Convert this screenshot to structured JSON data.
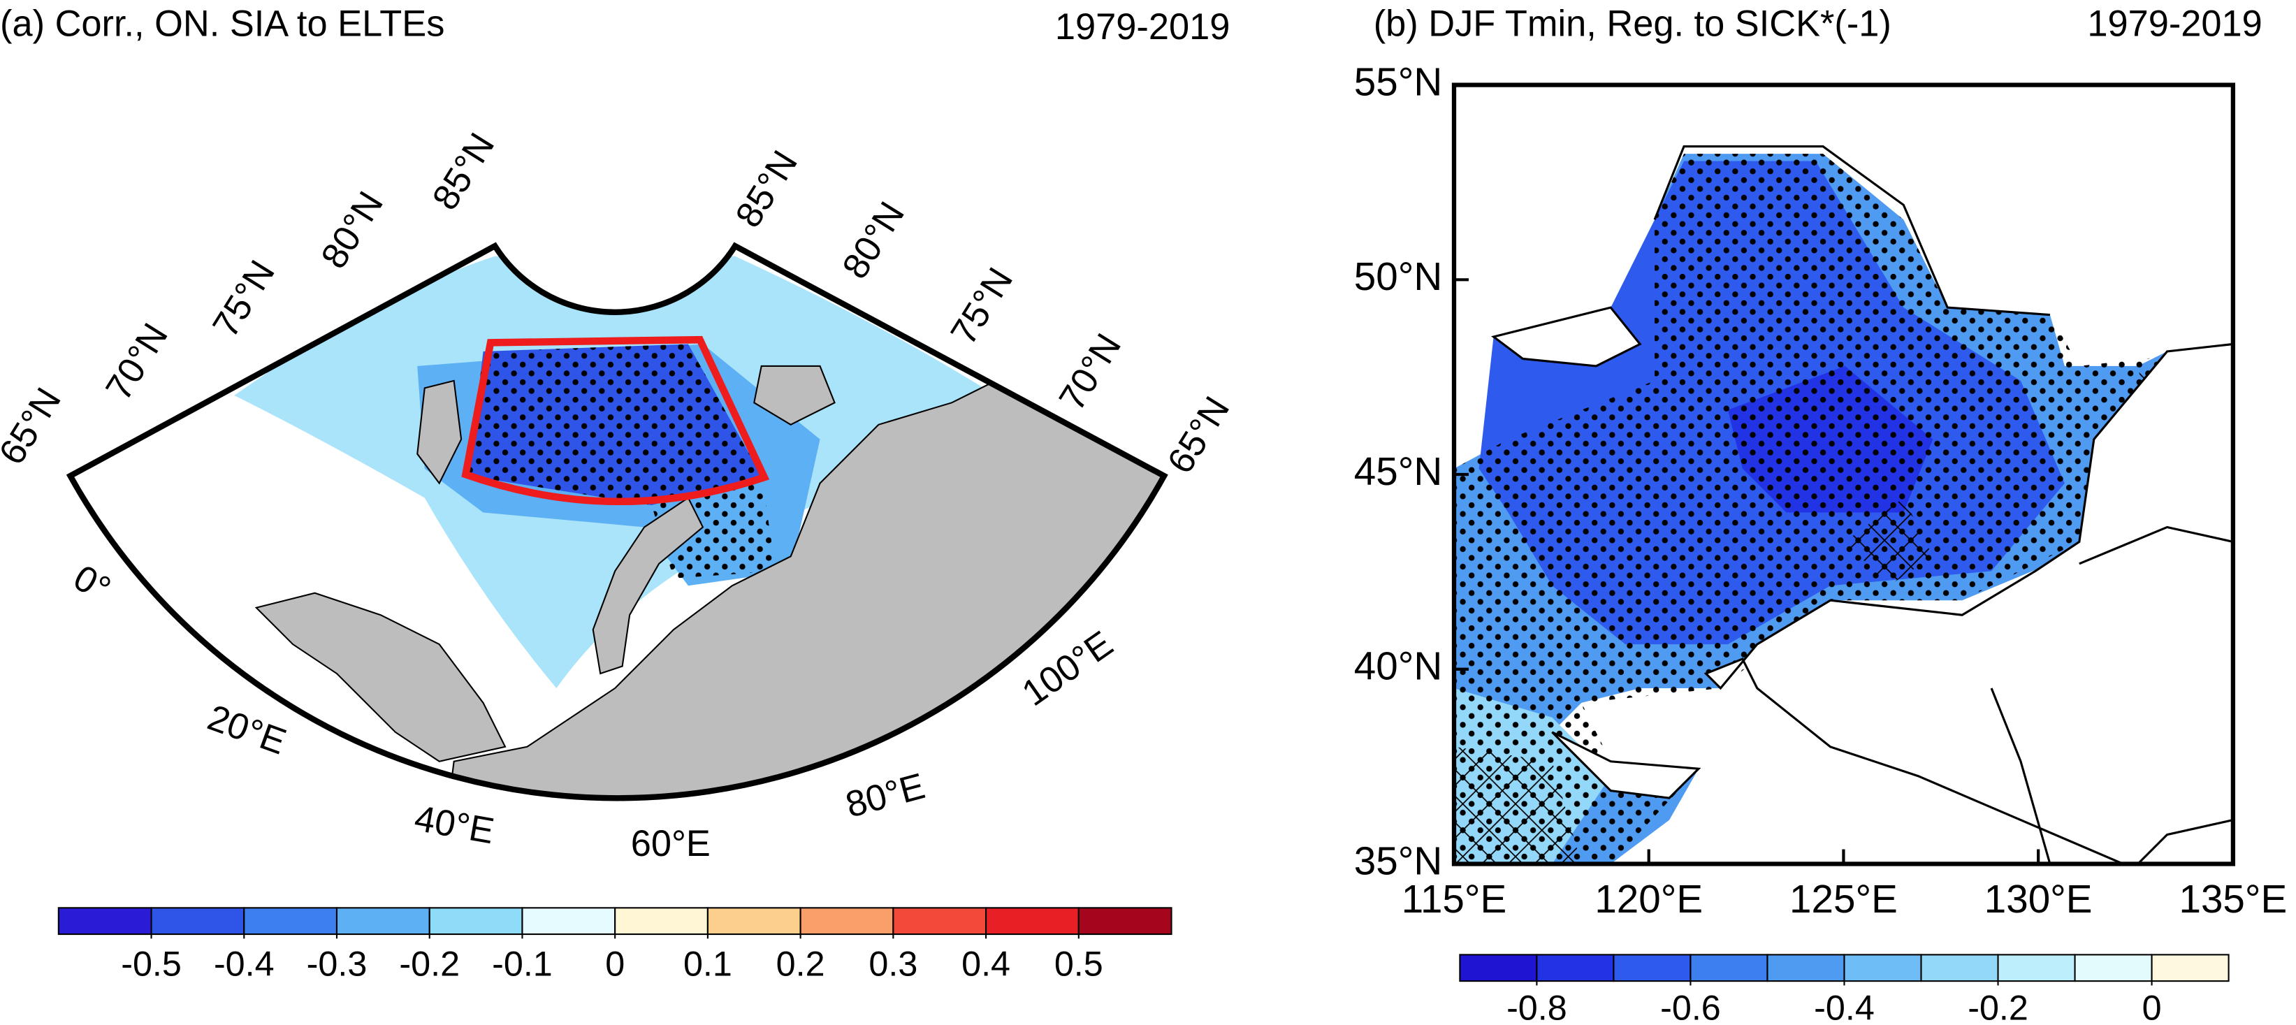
{
  "panel_a": {
    "title": "(a) Corr., ON. SIA to ELTEs",
    "period": "1979-2019",
    "lat_labels_left": [
      "65°N",
      "70°N",
      "75°N",
      "80°N",
      "85°N"
    ],
    "lat_labels_right": [
      "85°N",
      "80°N",
      "75°N",
      "70°N",
      "65°N"
    ],
    "lon_labels": [
      "0°",
      "20°E",
      "40°E",
      "60°E",
      "80°E",
      "100°E"
    ],
    "colorbar": {
      "levels": [
        -0.6,
        -0.5,
        -0.4,
        -0.3,
        -0.2,
        -0.1,
        0,
        0.1,
        0.2,
        0.3,
        0.4,
        0.5,
        0.6
      ],
      "colors": [
        "#2a1bd6",
        "#2f55e8",
        "#3d7fee",
        "#5eb0f5",
        "#8fdcf9",
        "#e6fbff",
        "#fff6d6",
        "#fccf8c",
        "#f9a06a",
        "#f24a3a",
        "#e81f25",
        "#a6061d"
      ],
      "ticks": [
        -0.5,
        -0.4,
        -0.3,
        -0.2,
        -0.1,
        0,
        0.1,
        0.2,
        0.3,
        0.4,
        0.5
      ]
    }
  },
  "panel_b": {
    "title": "(b) DJF Tmin, Reg. to SICK*(-1)",
    "period": "1979-2019",
    "xlim": [
      115,
      135
    ],
    "ylim": [
      35,
      55
    ],
    "xticks": [
      {
        "value": 115,
        "label": "115°E"
      },
      {
        "value": 120,
        "label": "120°E"
      },
      {
        "value": 125,
        "label": "125°E"
      },
      {
        "value": 130,
        "label": "130°E"
      },
      {
        "value": 135,
        "label": "135°E"
      }
    ],
    "yticks": [
      {
        "value": 35,
        "label": "35°N"
      },
      {
        "value": 40,
        "label": "40°N"
      },
      {
        "value": 45,
        "label": "45°N"
      },
      {
        "value": 50,
        "label": "50°N"
      },
      {
        "value": 55,
        "label": "55°N"
      }
    ],
    "colorbar": {
      "levels": [
        -0.9,
        -0.8,
        -0.7,
        -0.6,
        -0.5,
        -0.4,
        -0.3,
        -0.2,
        -0.1,
        0,
        0.1
      ],
      "colors": [
        "#1e14d2",
        "#2233e6",
        "#2e5bee",
        "#3d7fee",
        "#4f9bf2",
        "#6fbdf6",
        "#93d8f8",
        "#bdeefb",
        "#e4fbfd",
        "#fdf8de"
      ],
      "ticks": [
        -0.8,
        -0.6,
        -0.4,
        -0.2,
        0
      ]
    }
  }
}
